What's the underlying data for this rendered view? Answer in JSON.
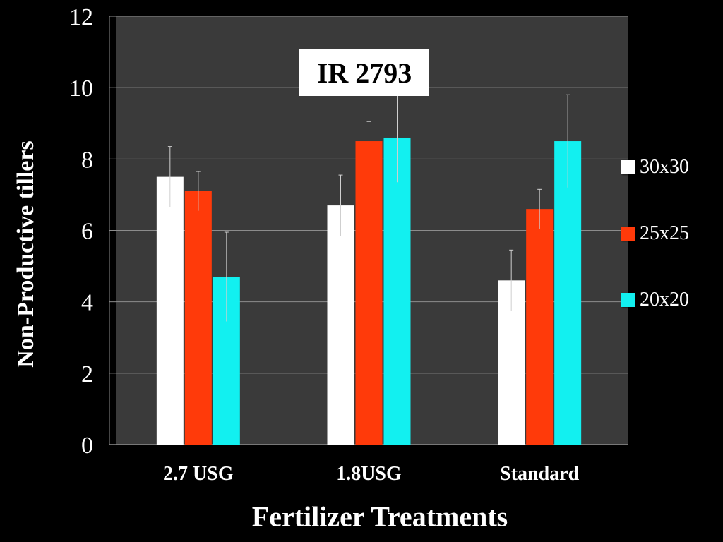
{
  "chart_data": {
    "type": "bar",
    "title": "IR 2793",
    "xlabel": "Fertilizer Treatments",
    "ylabel": "Non-Productive tillers",
    "categories": [
      "2.7 USG",
      "1.8USG",
      "Standard"
    ],
    "ylim": [
      0,
      12
    ],
    "yticks": [
      "0",
      "2",
      "4",
      "6",
      "8",
      "10",
      "12"
    ],
    "grid": true,
    "legend_position": "right",
    "series": [
      {
        "name": "30x30",
        "color": "#ffffff",
        "values": [
          7.5,
          6.7,
          4.6
        ],
        "errors": [
          0.85,
          0.85,
          0.85
        ]
      },
      {
        "name": "25x25",
        "color": "#ff3a0a",
        "values": [
          7.1,
          8.5,
          6.6
        ],
        "errors": [
          0.55,
          0.55,
          0.55
        ]
      },
      {
        "name": "20x20",
        "color": "#12f0f0",
        "values": [
          4.7,
          8.6,
          8.5
        ],
        "errors": [
          1.25,
          1.25,
          1.3
        ]
      }
    ]
  }
}
